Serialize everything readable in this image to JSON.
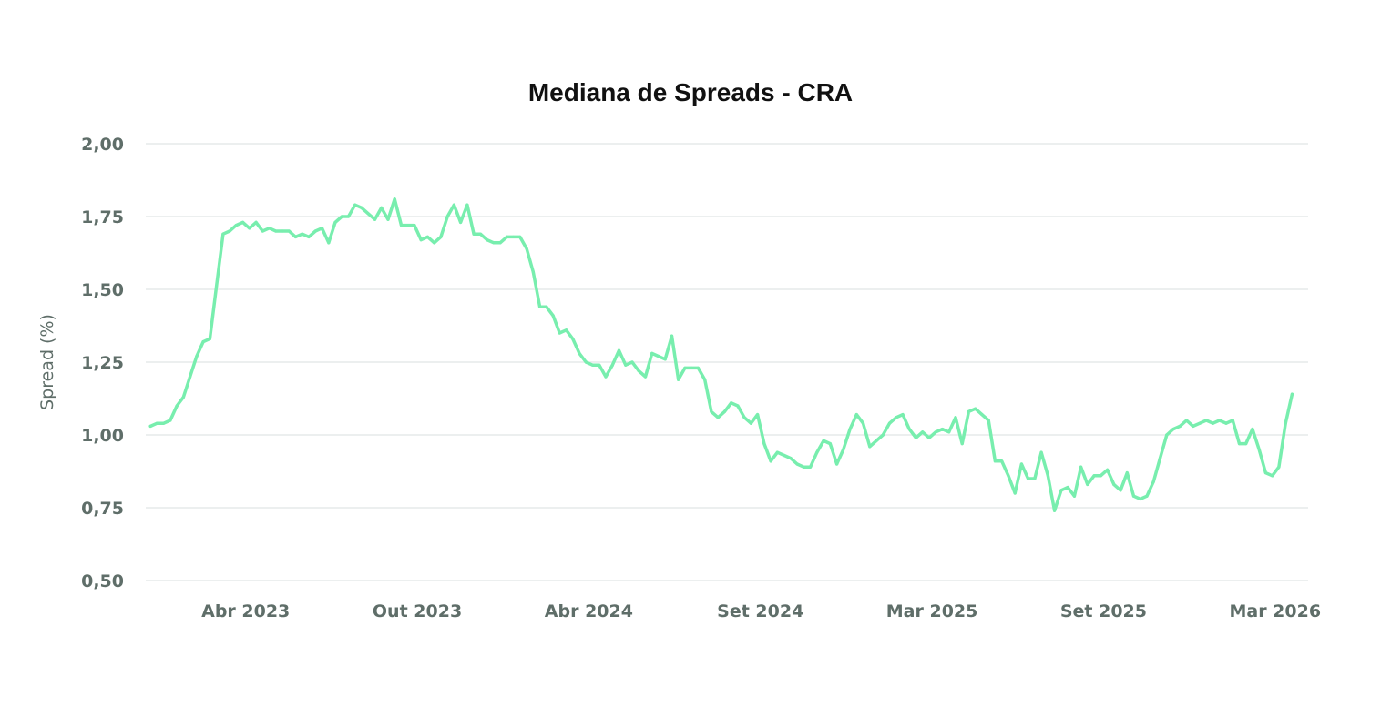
{
  "chart_data": {
    "type": "line",
    "title": "Mediana de Spreads - CRA",
    "xlabel": "",
    "ylabel": "Spread (%)",
    "ylim": [
      0.5,
      2.0
    ],
    "xlim": [
      "2022-12-18",
      "2026-05-04"
    ],
    "grid": "horizontal",
    "legend": "none",
    "line_color": "#78eeae",
    "yticks": [
      {
        "value": 0.5,
        "label": "0,50"
      },
      {
        "value": 0.75,
        "label": "0,75"
      },
      {
        "value": 1.0,
        "label": "1,00"
      },
      {
        "value": 1.25,
        "label": "1,25"
      },
      {
        "value": 1.5,
        "label": "1,50"
      },
      {
        "value": 1.75,
        "label": "1,75"
      },
      {
        "value": 2.0,
        "label": "2,00"
      }
    ],
    "xticks": [
      {
        "date": "2023-04-03",
        "label": "Abr 2023"
      },
      {
        "date": "2023-10-02",
        "label": "Out 2023"
      },
      {
        "date": "2024-04-01",
        "label": "Abr 2024"
      },
      {
        "date": "2024-09-30",
        "label": "Set 2024"
      },
      {
        "date": "2025-03-31",
        "label": "Mar 2025"
      },
      {
        "date": "2025-09-29",
        "label": "Set 2025"
      },
      {
        "date": "2026-03-30",
        "label": "Mar 2026"
      }
    ],
    "x": [
      "2022-12-23",
      "2022-12-30",
      "2023-01-06",
      "2023-01-13",
      "2023-01-20",
      "2023-01-27",
      "2023-02-03",
      "2023-02-10",
      "2023-02-17",
      "2023-02-24",
      "2023-03-03",
      "2023-03-10",
      "2023-03-17",
      "2023-03-24",
      "2023-03-31",
      "2023-04-07",
      "2023-04-14",
      "2023-04-21",
      "2023-04-28",
      "2023-05-05",
      "2023-05-12",
      "2023-05-19",
      "2023-05-26",
      "2023-06-02",
      "2023-06-09",
      "2023-06-16",
      "2023-06-23",
      "2023-06-30",
      "2023-07-07",
      "2023-07-14",
      "2023-07-21",
      "2023-07-28",
      "2023-08-04",
      "2023-08-11",
      "2023-08-18",
      "2023-08-25",
      "2023-09-01",
      "2023-09-08",
      "2023-09-15",
      "2023-09-22",
      "2023-09-29",
      "2023-10-06",
      "2023-10-13",
      "2023-10-20",
      "2023-10-27",
      "2023-11-03",
      "2023-11-10",
      "2023-11-17",
      "2023-11-24",
      "2023-12-01",
      "2023-12-08",
      "2023-12-15",
      "2023-12-22",
      "2023-12-29",
      "2024-01-05",
      "2024-01-12",
      "2024-01-19",
      "2024-01-26",
      "2024-02-02",
      "2024-02-09",
      "2024-02-16",
      "2024-02-23",
      "2024-03-01",
      "2024-03-08",
      "2024-03-15",
      "2024-03-22",
      "2024-03-29",
      "2024-04-05",
      "2024-04-12",
      "2024-04-19",
      "2024-04-26",
      "2024-05-03",
      "2024-05-10",
      "2024-05-17",
      "2024-05-24",
      "2024-05-31",
      "2024-06-07",
      "2024-06-14",
      "2024-06-21",
      "2024-06-28",
      "2024-07-05",
      "2024-07-12",
      "2024-07-19",
      "2024-07-26",
      "2024-08-02",
      "2024-08-09",
      "2024-08-16",
      "2024-08-23",
      "2024-08-30",
      "2024-09-06",
      "2024-09-13",
      "2024-09-20",
      "2024-09-27",
      "2024-10-04",
      "2024-10-11",
      "2024-10-18",
      "2024-10-25",
      "2024-11-01",
      "2024-11-08",
      "2024-11-15",
      "2024-11-22",
      "2024-11-29",
      "2024-12-06",
      "2024-12-13",
      "2024-12-20",
      "2024-12-27",
      "2025-01-03",
      "2025-01-10",
      "2025-01-17",
      "2025-01-24",
      "2025-01-31",
      "2025-02-07",
      "2025-02-14",
      "2025-02-21",
      "2025-02-28",
      "2025-03-07",
      "2025-03-14",
      "2025-03-21",
      "2025-03-28",
      "2025-04-04",
      "2025-04-11",
      "2025-04-18",
      "2025-04-25",
      "2025-05-02",
      "2025-05-09",
      "2025-05-16",
      "2025-05-23",
      "2025-05-30",
      "2025-06-06",
      "2025-06-13",
      "2025-06-20",
      "2025-06-27",
      "2025-07-04",
      "2025-07-11",
      "2025-07-18",
      "2025-07-25",
      "2025-08-01",
      "2025-08-08",
      "2025-08-15",
      "2025-08-22",
      "2025-08-29",
      "2025-09-05",
      "2025-09-12",
      "2025-09-19",
      "2025-09-26",
      "2025-10-03",
      "2025-10-10",
      "2025-10-17",
      "2025-10-24",
      "2025-10-31",
      "2025-11-07",
      "2025-11-14",
      "2025-11-21",
      "2025-11-28",
      "2025-12-05",
      "2025-12-12",
      "2025-12-19",
      "2025-12-26",
      "2026-01-02",
      "2026-01-09",
      "2026-01-16",
      "2026-01-23",
      "2026-01-30",
      "2026-02-06",
      "2026-02-13",
      "2026-02-20",
      "2026-02-27",
      "2026-03-06",
      "2026-03-13",
      "2026-03-20",
      "2026-03-27",
      "2026-04-03",
      "2026-04-10",
      "2026-04-17"
    ],
    "series": [
      {
        "values": [
          1.03,
          1.04,
          1.04,
          1.05,
          1.1,
          1.13,
          1.2,
          1.27,
          1.32,
          1.33,
          1.51,
          1.69,
          1.7,
          1.72,
          1.73,
          1.71,
          1.73,
          1.7,
          1.71,
          1.7,
          1.7,
          1.7,
          1.68,
          1.69,
          1.68,
          1.7,
          1.71,
          1.66,
          1.73,
          1.75,
          1.75,
          1.79,
          1.78,
          1.76,
          1.74,
          1.78,
          1.74,
          1.81,
          1.72,
          1.72,
          1.72,
          1.67,
          1.68,
          1.66,
          1.68,
          1.75,
          1.79,
          1.73,
          1.79,
          1.69,
          1.69,
          1.67,
          1.66,
          1.66,
          1.68,
          1.68,
          1.68,
          1.64,
          1.56,
          1.44,
          1.44,
          1.41,
          1.35,
          1.36,
          1.33,
          1.28,
          1.25,
          1.24,
          1.24,
          1.2,
          1.24,
          1.29,
          1.24,
          1.25,
          1.22,
          1.2,
          1.28,
          1.27,
          1.26,
          1.34,
          1.19,
          1.23,
          1.23,
          1.23,
          1.19,
          1.08,
          1.06,
          1.08,
          1.11,
          1.1,
          1.06,
          1.04,
          1.07,
          0.97,
          0.91,
          0.94,
          0.93,
          0.92,
          0.9,
          0.89,
          0.89,
          0.94,
          0.98,
          0.97,
          0.9,
          0.95,
          1.02,
          1.07,
          1.04,
          0.96,
          0.98,
          1.0,
          1.04,
          1.06,
          1.07,
          1.02,
          0.99,
          1.01,
          0.99,
          1.01,
          1.02,
          1.01,
          1.06,
          0.97,
          1.08,
          1.09,
          1.07,
          1.05,
          0.91,
          0.91,
          0.86,
          0.8,
          0.9,
          0.85,
          0.85,
          0.94,
          0.86,
          0.74,
          0.81,
          0.82,
          0.79,
          0.89,
          0.83,
          0.86,
          0.86,
          0.88,
          0.83,
          0.81,
          0.87,
          0.79,
          0.78,
          0.79,
          0.84,
          0.92,
          1.0,
          1.02,
          1.03,
          1.05,
          1.03,
          1.04,
          1.05,
          1.04,
          1.05,
          1.04,
          1.05,
          0.97,
          0.97,
          1.02,
          0.95,
          0.87,
          0.86,
          0.89,
          1.04,
          1.14
        ]
      }
    ]
  }
}
